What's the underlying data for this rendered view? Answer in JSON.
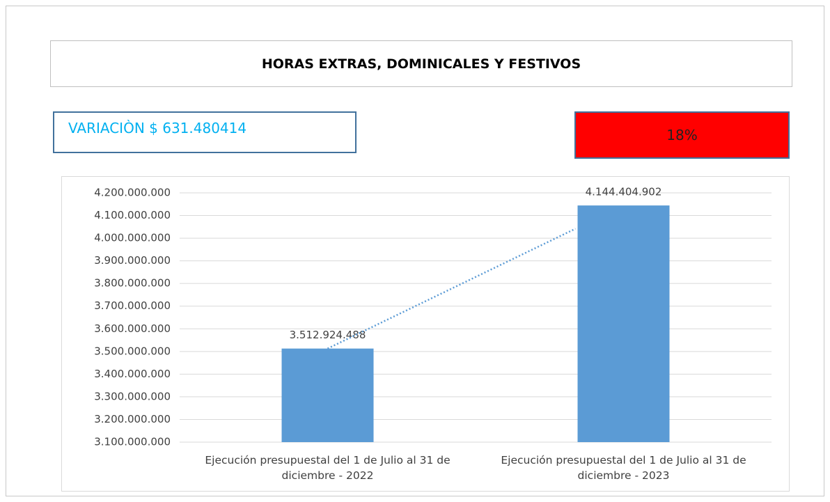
{
  "header": {
    "title": "HORAS EXTRAS, DOMINICALES Y FESTIVOS",
    "variation": "VARIACIÒN $ 631.480414",
    "badge": "18%"
  },
  "chart_data": {
    "type": "bar",
    "categories": [
      "Ejecución presupuestal del 1 de Julio al 31 de diciembre - 2022",
      "Ejecución presupuestal del 1 de Julio al 31 de diciembre - 2023"
    ],
    "values": [
      3512924488,
      4144404902
    ],
    "value_labels": [
      "3.512.924.488",
      "4.144.404.902"
    ],
    "color": "#5b9bd5",
    "trendline": true,
    "ylim": [
      3100000000,
      4200000000
    ],
    "yticks": [
      {
        "value": 3100000000,
        "label": "3.100.000.000"
      },
      {
        "value": 3200000000,
        "label": "3.200.000.000"
      },
      {
        "value": 3300000000,
        "label": "3.300.000.000"
      },
      {
        "value": 3400000000,
        "label": "3.400.000.000"
      },
      {
        "value": 3500000000,
        "label": "3.500.000.000"
      },
      {
        "value": 3600000000,
        "label": "3.600.000.000"
      },
      {
        "value": 3700000000,
        "label": "3.700.000.000"
      },
      {
        "value": 3800000000,
        "label": "3.800.000.000"
      },
      {
        "value": 3900000000,
        "label": "3.900.000.000"
      },
      {
        "value": 4000000000,
        "label": "4.000.000.000"
      },
      {
        "value": 4100000000,
        "label": "4.100.000.000"
      },
      {
        "value": 4200000000,
        "label": "4.200.000.000"
      }
    ],
    "grid": true
  }
}
